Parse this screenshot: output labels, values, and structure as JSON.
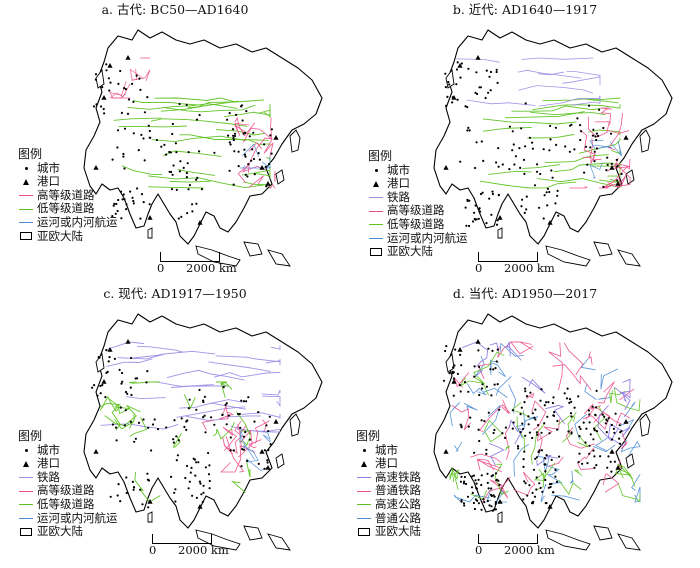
{
  "colors": {
    "land_fill": "#ffffff",
    "coast": "#000000",
    "railway": "#9b8ee6",
    "high_grade_road": "#ec4f8c",
    "low_grade_road": "#5cc21e",
    "waterway": "#4f8fd6",
    "hsr": "#8c7be0",
    "normal_rail": "#ec4f8c",
    "expressway": "#5cc21e",
    "highway": "#4f8fd6"
  },
  "panels": [
    {
      "id": "a",
      "title": "a. 古代: BC50—AD1640",
      "legend": {
        "title": "图例",
        "items": [
          {
            "symbol": "dot",
            "label": "城市"
          },
          {
            "symbol": "triangle",
            "label": "港口"
          },
          {
            "symbol": "line",
            "color": "#ec4f8c",
            "label": "高等级道路"
          },
          {
            "symbol": "line",
            "color": "#5cc21e",
            "label": "低等级道路"
          },
          {
            "symbol": "line",
            "color": "#4f8fd6",
            "label": "运河或内河航运"
          },
          {
            "symbol": "box",
            "label": "亚欧大陆"
          }
        ]
      },
      "scale": {
        "zero": "0",
        "distance": "2000 km"
      }
    },
    {
      "id": "b",
      "title": "b. 近代: AD1640—1917",
      "legend": {
        "title": "图例",
        "items": [
          {
            "symbol": "dot",
            "label": "城市"
          },
          {
            "symbol": "triangle",
            "label": "港口"
          },
          {
            "symbol": "line",
            "color": "#9b8ee6",
            "label": "铁路"
          },
          {
            "symbol": "line",
            "color": "#ec4f8c",
            "label": "高等级道路"
          },
          {
            "symbol": "line",
            "color": "#5cc21e",
            "label": "低等级道路"
          },
          {
            "symbol": "line",
            "color": "#4f8fd6",
            "label": "运河或内河航运"
          },
          {
            "symbol": "box",
            "label": "亚欧大陆"
          }
        ]
      },
      "scale": {
        "zero": "0",
        "distance": "2000 km"
      }
    },
    {
      "id": "c",
      "title": "c. 现代: AD1917—1950",
      "legend": {
        "title": "图例",
        "items": [
          {
            "symbol": "dot",
            "label": "城市"
          },
          {
            "symbol": "triangle",
            "label": "港口"
          },
          {
            "symbol": "line",
            "color": "#9b8ee6",
            "label": "铁路"
          },
          {
            "symbol": "line",
            "color": "#ec4f8c",
            "label": "高等级道路"
          },
          {
            "symbol": "line",
            "color": "#5cc21e",
            "label": "低等级道路"
          },
          {
            "symbol": "line",
            "color": "#4f8fd6",
            "label": "运河或内河航运"
          },
          {
            "symbol": "box",
            "label": "亚欧大陆"
          }
        ]
      },
      "scale": {
        "zero": "0",
        "distance": "2000 km"
      }
    },
    {
      "id": "d",
      "title": "d. 当代: AD1950—2017",
      "legend": {
        "title": "图例",
        "items": [
          {
            "symbol": "dot",
            "label": "城市"
          },
          {
            "symbol": "triangle",
            "label": "港口"
          },
          {
            "symbol": "line",
            "color": "#8c7be0",
            "label": "高速铁路"
          },
          {
            "symbol": "line",
            "color": "#ec4f8c",
            "label": "普通铁路"
          },
          {
            "symbol": "line",
            "color": "#5cc21e",
            "label": "高速公路"
          },
          {
            "symbol": "line",
            "color": "#4f8fd6",
            "label": "普通公路"
          },
          {
            "symbol": "box",
            "label": "亚欧大陆"
          }
        ]
      },
      "scale": {
        "zero": "0",
        "distance": "2000 km"
      }
    }
  ]
}
